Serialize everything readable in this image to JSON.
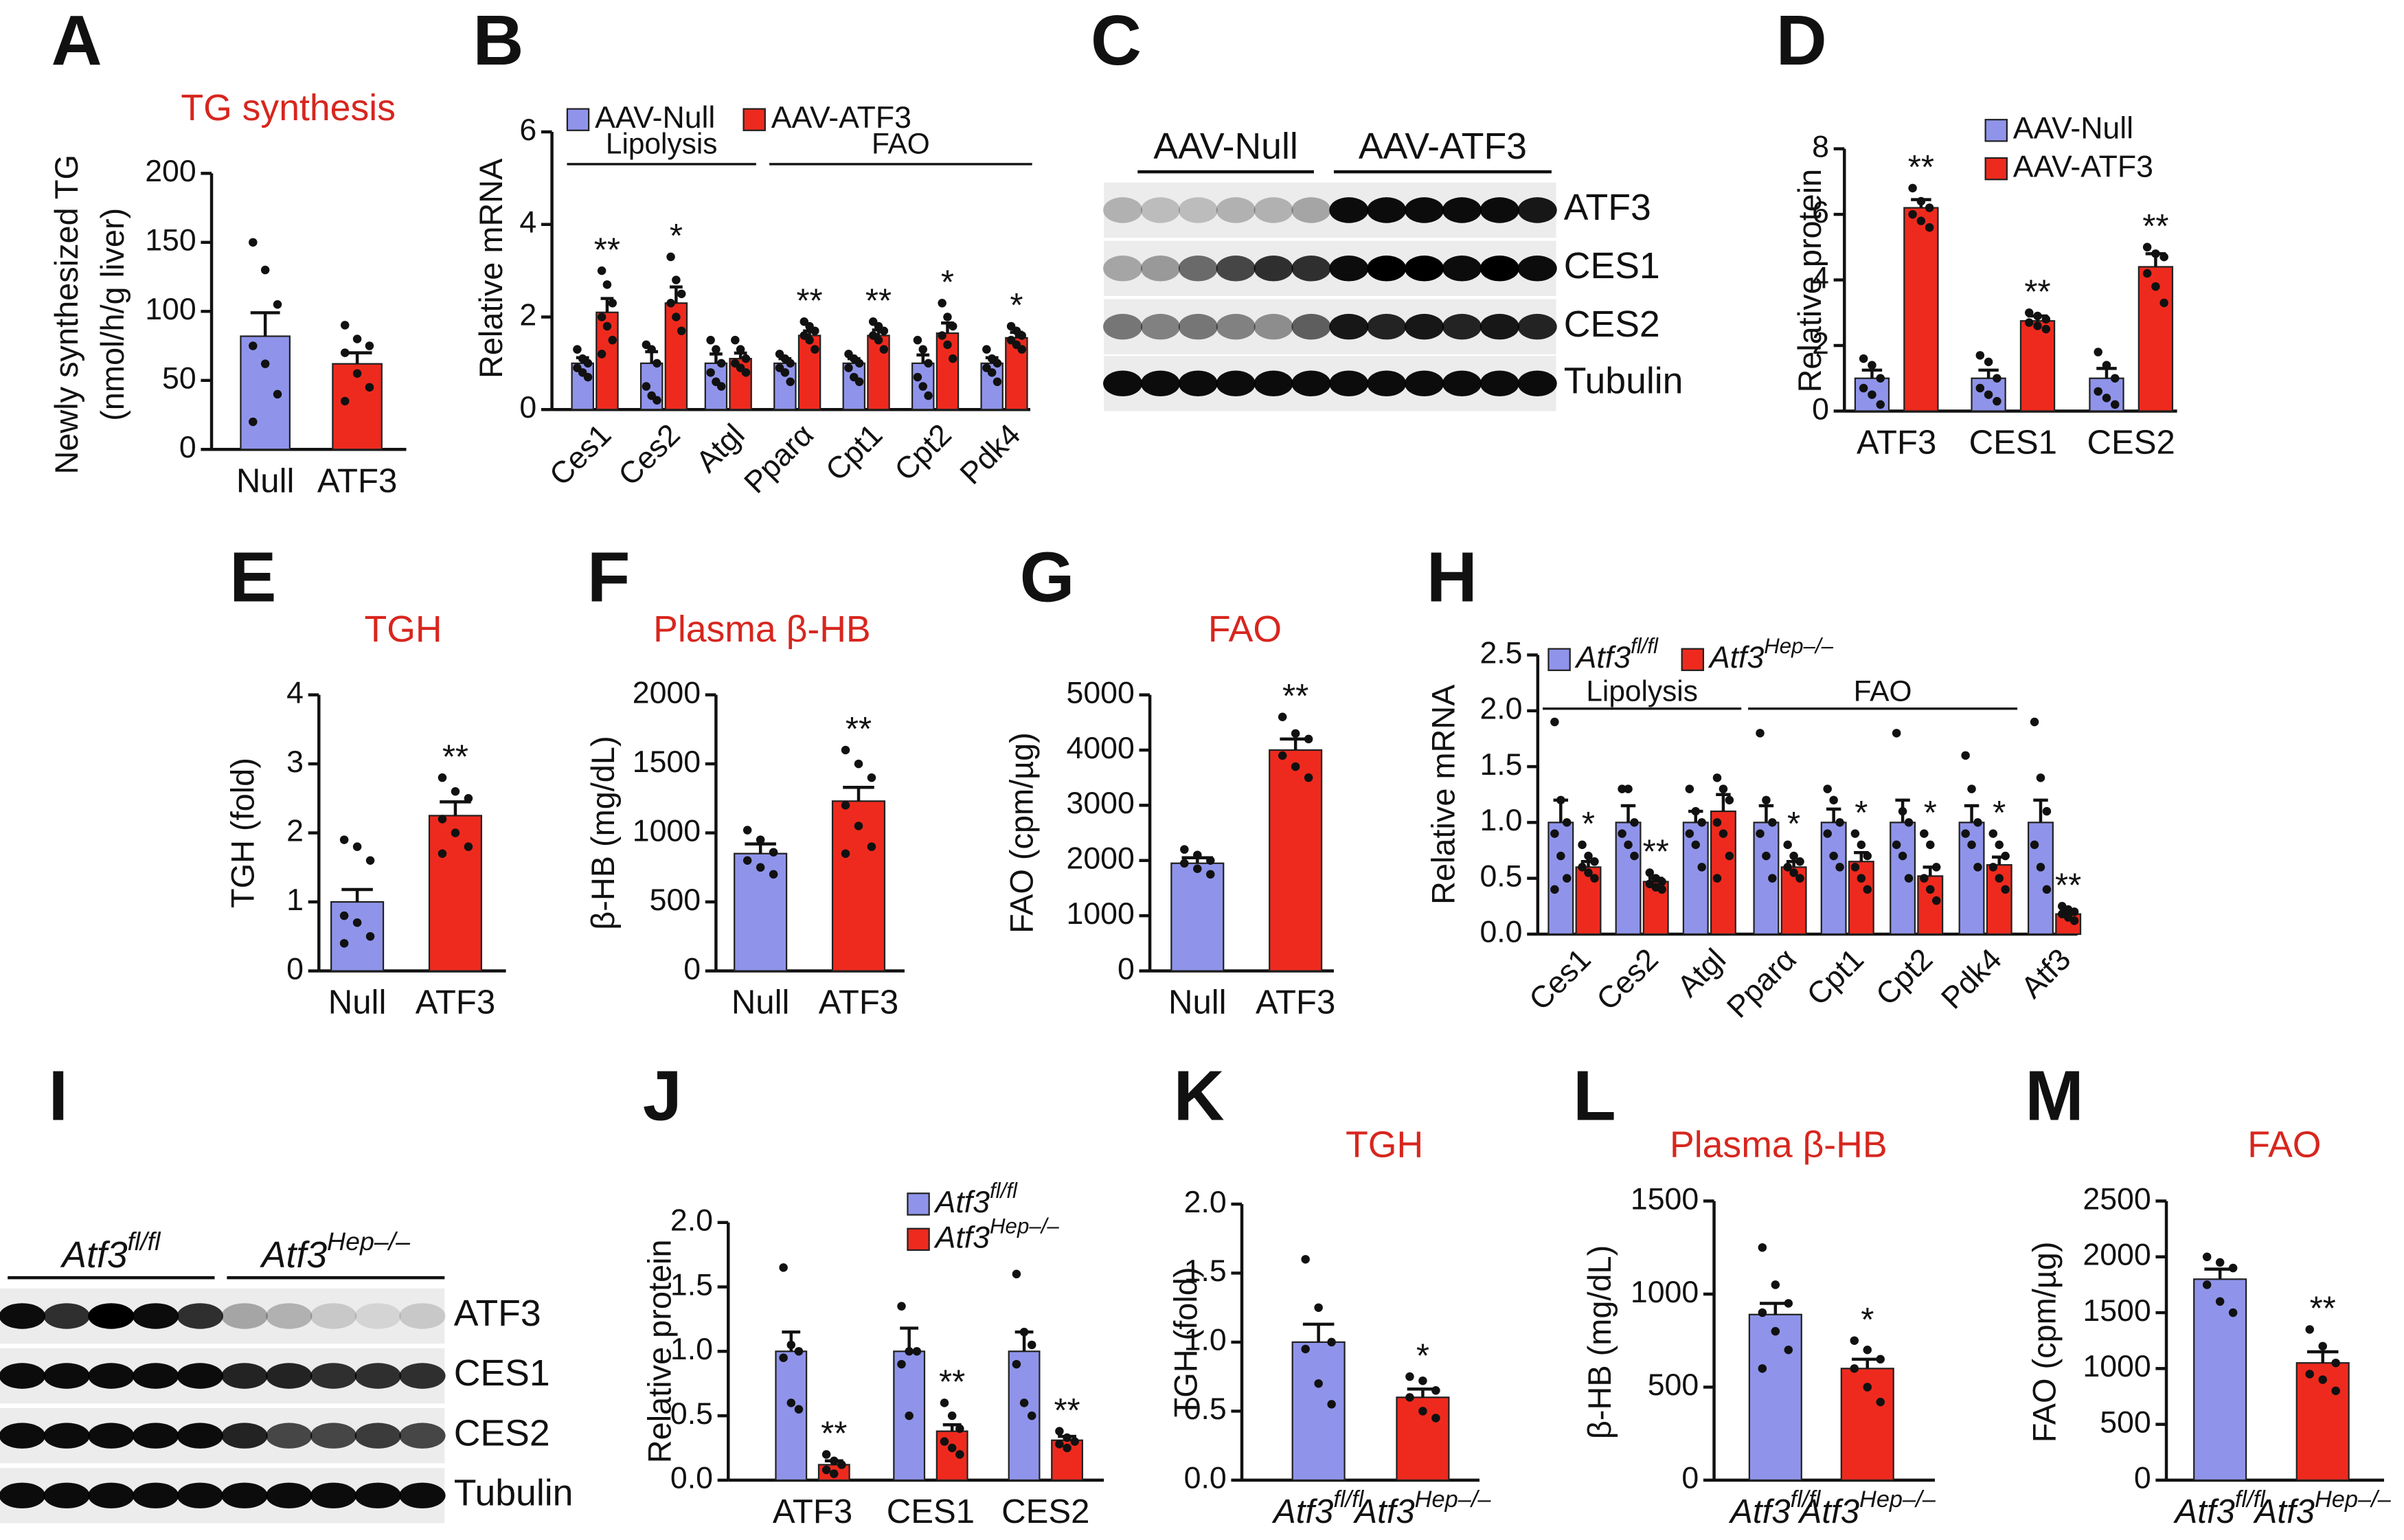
{
  "chart_data": [
    {
      "type": "bar",
      "panel": "A",
      "title": "TG synthesis",
      "ylabel": [
        "Newly synthesized TG",
        "(nmol/h/g liver)"
      ],
      "categories": [
        "Null",
        "ATF3"
      ],
      "values": [
        82,
        62
      ],
      "errors": [
        17,
        8
      ],
      "colors": [
        "#8f94ea",
        "#ee2a1e"
      ],
      "points": [
        [
          150,
          130,
          105,
          75,
          62,
          40,
          20
        ],
        [
          90,
          80,
          75,
          70,
          55,
          45,
          35
        ]
      ],
      "ylim": [
        0,
        200
      ],
      "yticks": [
        0,
        50,
        100,
        150,
        200
      ]
    },
    {
      "type": "bar",
      "panel": "B",
      "ylabel": "Relative mRNA",
      "categories": [
        "Ces1",
        "Ces2",
        "Atgl",
        "Pparα",
        "Cpt1",
        "Cpt2",
        "Pdk4"
      ],
      "ylim": [
        0,
        6
      ],
      "yticks": [
        0,
        2,
        4,
        6
      ],
      "legend": "top",
      "groups": [
        {
          "label": "Lipolysis",
          "categories": [
            "Ces1",
            "Ces2",
            "Atgl"
          ]
        },
        {
          "label": "FAO",
          "categories": [
            "Pparα",
            "Cpt1",
            "Cpt2",
            "Pdk4"
          ]
        }
      ],
      "series": [
        {
          "name": "AAV-Null",
          "color": "#8f94ea",
          "values": [
            1,
            1,
            1,
            1,
            1,
            1,
            1
          ],
          "errors": [
            0.12,
            0.25,
            0.2,
            0.1,
            0.1,
            0.18,
            0.12
          ],
          "points": [
            [
              1.3,
              1.1,
              1.0,
              0.9,
              0.8,
              0.7
            ],
            [
              1.4,
              1.3,
              1.0,
              0.5,
              0.3,
              0.2
            ],
            [
              1.5,
              1.3,
              1.0,
              0.8,
              0.6,
              0.5
            ],
            [
              1.2,
              1.1,
              1.0,
              0.9,
              0.8,
              0.6
            ],
            [
              1.2,
              1.1,
              1.0,
              0.9,
              0.7,
              0.6
            ],
            [
              1.5,
              1.3,
              1.0,
              0.7,
              0.5,
              0.3
            ],
            [
              1.3,
              1.1,
              1.0,
              0.9,
              0.8,
              0.6
            ]
          ]
        },
        {
          "name": "AAV-ATF3",
          "color": "#ee2a1e",
          "values": [
            2.1,
            2.3,
            1.1,
            1.6,
            1.6,
            1.65,
            1.55
          ],
          "errors": [
            0.3,
            0.35,
            0.12,
            0.1,
            0.12,
            0.22,
            0.12
          ],
          "annotations": [
            "**",
            "*",
            null,
            "**",
            "**",
            "*",
            "*"
          ],
          "points": [
            [
              3.0,
              2.7,
              2.3,
              2.0,
              1.8,
              1.5,
              1.2
            ],
            [
              3.3,
              2.8,
              2.5,
              2.3,
              2.0,
              1.7
            ],
            [
              1.5,
              1.3,
              1.1,
              1.0,
              0.9,
              0.8
            ],
            [
              1.9,
              1.8,
              1.7,
              1.6,
              1.5,
              1.3
            ],
            [
              1.9,
              1.8,
              1.7,
              1.6,
              1.5,
              1.3
            ],
            [
              2.3,
              2.0,
              1.8,
              1.6,
              1.4,
              1.1
            ],
            [
              1.8,
              1.7,
              1.6,
              1.5,
              1.4,
              1.3
            ]
          ]
        }
      ]
    },
    {
      "type": "blot",
      "panel": "C",
      "groups": [
        "AAV-Null",
        "AAV-ATF3"
      ],
      "bands": [
        "ATF3",
        "CES1",
        "CES2",
        "Tubulin"
      ]
    },
    {
      "type": "bar",
      "panel": "D",
      "ylabel": "Relative protein",
      "categories": [
        "ATF3",
        "CES1",
        "CES2"
      ],
      "ylim": [
        0,
        8
      ],
      "yticks": [
        0,
        2,
        4,
        6,
        8
      ],
      "legend": "upper right",
      "series": [
        {
          "name": "AAV-Null",
          "color": "#8f94ea",
          "values": [
            1,
            1,
            1
          ],
          "errors": [
            0.25,
            0.25,
            0.3
          ],
          "points": [
            [
              1.6,
              1.4,
              1.0,
              0.7,
              0.5,
              0.2
            ],
            [
              1.7,
              1.5,
              1.0,
              0.7,
              0.5,
              0.3
            ],
            [
              1.8,
              1.4,
              1.0,
              0.6,
              0.4,
              0.2
            ]
          ]
        },
        {
          "name": "AAV-ATF3",
          "color": "#ee2a1e",
          "values": [
            6.2,
            2.75,
            4.4
          ],
          "errors": [
            0.25,
            0.15,
            0.4
          ],
          "annotations": [
            "**",
            "**",
            "**"
          ],
          "points": [
            [
              6.8,
              6.4,
              6.2,
              6.0,
              5.8,
              5.6
            ],
            [
              3.0,
              2.9,
              2.8,
              2.7,
              2.6,
              2.5
            ],
            [
              5.0,
              4.8,
              4.7,
              4.2,
              3.8,
              3.3
            ]
          ]
        }
      ]
    },
    {
      "type": "bar",
      "panel": "E",
      "title": "TGH",
      "ylabel": "TGH (fold)",
      "categories": [
        "Null",
        "ATF3"
      ],
      "values": [
        1.0,
        2.25
      ],
      "errors": [
        0.18,
        0.2
      ],
      "colors": [
        "#8f94ea",
        "#ee2a1e"
      ],
      "annotations": [
        null,
        "**"
      ],
      "points": [
        [
          1.9,
          1.8,
          1.6,
          0.8,
          0.7,
          0.5,
          0.4
        ],
        [
          2.8,
          2.6,
          2.5,
          2.2,
          2.0,
          1.8,
          1.7
        ]
      ],
      "ylim": [
        0,
        4
      ],
      "yticks": [
        0,
        1,
        2,
        3,
        4
      ]
    },
    {
      "type": "bar",
      "panel": "F",
      "title": "Plasma  β-HB",
      "ylabel": "β-HB (mg/dL)",
      "categories": [
        "Null",
        "ATF3"
      ],
      "values": [
        850,
        1230
      ],
      "errors": [
        70,
        100
      ],
      "colors": [
        "#8f94ea",
        "#ee2a1e"
      ],
      "annotations": [
        null,
        "**"
      ],
      "points": [
        [
          1020,
          950,
          860,
          800,
          750,
          700
        ],
        [
          1600,
          1500,
          1400,
          1200,
          1050,
          900,
          850
        ]
      ],
      "ylim": [
        0,
        2000
      ],
      "yticks": [
        0,
        500,
        1000,
        1500,
        2000
      ]
    },
    {
      "type": "bar",
      "panel": "G",
      "title": "FAO",
      "ylabel": "FAO (cpm/µg)",
      "categories": [
        "Null",
        "ATF3"
      ],
      "values": [
        1950,
        4000
      ],
      "errors": [
        100,
        200
      ],
      "colors": [
        "#8f94ea",
        "#ee2a1e"
      ],
      "annotations": [
        null,
        "**"
      ],
      "points": [
        [
          2200,
          2100,
          2000,
          1950,
          1850,
          1750
        ],
        [
          4600,
          4300,
          4200,
          3900,
          3700,
          3500
        ]
      ],
      "ylim": [
        0,
        5000
      ],
      "yticks": [
        0,
        1000,
        2000,
        3000,
        4000,
        5000
      ]
    },
    {
      "type": "bar",
      "panel": "H",
      "ylabel": "Relative mRNA",
      "categories": [
        "Ces1",
        "Ces2",
        "Atgl",
        "Pparα",
        "Cpt1",
        "Cpt2",
        "Pdk4",
        "Atf3"
      ],
      "ylim": [
        0,
        2.5
      ],
      "yticks": [
        {
          "value": 0,
          "label": "0.0"
        },
        0.5,
        {
          "value": 1,
          "label": "1.0"
        },
        1.5,
        {
          "value": 2,
          "label": "2.0"
        },
        2.5
      ],
      "legend": "top",
      "groups": [
        {
          "label": "Lipolysis",
          "categories": [
            "Ces1",
            "Ces2",
            "Atgl"
          ]
        },
        {
          "label": "FAO",
          "categories": [
            "Pparα",
            "Cpt1",
            "Cpt2",
            "Pdk4"
          ]
        }
      ],
      "series": [
        {
          "name": {
            "text": "Atf3",
            "sup": "fl/fl"
          },
          "color": "#8f94ea",
          "values": [
            1,
            1,
            1,
            1,
            1,
            1,
            1,
            1
          ],
          "errors": [
            0.2,
            0.15,
            0.1,
            0.15,
            0.12,
            0.2,
            0.15,
            0.2
          ],
          "points": [
            [
              1.9,
              1.2,
              1.0,
              0.9,
              0.7,
              0.5,
              0.4
            ],
            [
              1.3,
              1.3,
              1.0,
              0.9,
              0.8,
              0.7
            ],
            [
              1.3,
              1.1,
              1.0,
              0.9,
              0.8,
              0.6
            ],
            [
              1.8,
              1.2,
              1.0,
              0.9,
              0.7,
              0.5
            ],
            [
              1.3,
              1.2,
              1.0,
              0.9,
              0.7,
              0.6
            ],
            [
              1.8,
              1.1,
              1.0,
              0.8,
              0.7,
              0.5
            ],
            [
              1.6,
              1.3,
              1.0,
              0.9,
              0.8,
              0.6
            ],
            [
              1.9,
              1.4,
              1.1,
              0.8,
              0.6,
              0.4
            ]
          ]
        },
        {
          "name": {
            "text": "Atf3",
            "sup": "Hep–/–"
          },
          "color": "#ee2a1e",
          "values": [
            0.6,
            0.47,
            1.1,
            0.6,
            0.65,
            0.52,
            0.62,
            0.18
          ],
          "errors": [
            0.05,
            0.03,
            0.15,
            0.05,
            0.08,
            0.08,
            0.07,
            0.02
          ],
          "annotations": [
            "*",
            "**",
            null,
            "*",
            "*",
            "*",
            "*",
            "**"
          ],
          "points": [
            [
              0.8,
              0.7,
              0.65,
              0.6,
              0.55,
              0.5
            ],
            [
              0.55,
              0.5,
              0.47,
              0.45,
              0.42,
              0.4
            ],
            [
              1.4,
              1.3,
              1.2,
              1.0,
              0.9,
              0.7,
              0.5
            ],
            [
              0.8,
              0.7,
              0.65,
              0.6,
              0.55,
              0.5
            ],
            [
              0.9,
              0.8,
              0.7,
              0.6,
              0.5,
              0.4
            ],
            [
              0.9,
              0.8,
              0.6,
              0.5,
              0.4,
              0.3
            ],
            [
              0.9,
              0.8,
              0.7,
              0.6,
              0.5,
              0.4
            ],
            [
              0.25,
              0.22,
              0.2,
              0.18,
              0.15,
              0.12
            ]
          ]
        }
      ]
    },
    {
      "type": "blot",
      "panel": "I",
      "groups": [
        {
          "text": "Atf3",
          "sup": "fl/fl"
        },
        {
          "text": "Atf3",
          "sup": "Hep–/–"
        }
      ],
      "bands": [
        "ATF3",
        "CES1",
        "CES2",
        "Tubulin"
      ]
    },
    {
      "type": "bar",
      "panel": "J",
      "ylabel": "Relative protein",
      "categories": [
        "ATF3",
        "CES1",
        "CES2"
      ],
      "ylim": [
        0,
        2
      ],
      "yticks": [
        {
          "value": 0,
          "label": "0.0"
        },
        0.5,
        {
          "value": 1,
          "label": "1.0"
        },
        1.5,
        {
          "value": 2,
          "label": "2.0"
        }
      ],
      "legend": "upper right",
      "series": [
        {
          "name": {
            "text": "Atf3",
            "sup": "fl/fl"
          },
          "color": "#8f94ea",
          "values": [
            1,
            1,
            1
          ],
          "errors": [
            0.15,
            0.18,
            0.15
          ],
          "points": [
            [
              1.65,
              1.05,
              1.0,
              0.95,
              0.6,
              0.55
            ],
            [
              1.35,
              1.0,
              1.0,
              0.9,
              0.5
            ],
            [
              1.6,
              1.15,
              1.05,
              0.9,
              0.6,
              0.5
            ]
          ]
        },
        {
          "name": {
            "text": "Atf3",
            "sup": "Hep–/–"
          },
          "color": "#ee2a1e",
          "values": [
            0.12,
            0.38,
            0.31
          ],
          "errors": [
            0.03,
            0.05,
            0.03
          ],
          "annotations": [
            "**",
            "**",
            "**"
          ],
          "points": [
            [
              0.2,
              0.15,
              0.12,
              0.08,
              0.05
            ],
            [
              0.6,
              0.5,
              0.4,
              0.3,
              0.25,
              0.2
            ],
            [
              0.38,
              0.33,
              0.3,
              0.28,
              0.25
            ]
          ]
        }
      ]
    },
    {
      "type": "bar",
      "panel": "K",
      "title": "TGH",
      "ylabel": "TGH (fold)",
      "categories": [
        {
          "text": "Atf3",
          "sup": "fl/fl"
        },
        {
          "text": "Atf3",
          "sup": "Hep–/–"
        }
      ],
      "values": [
        1.0,
        0.6
      ],
      "errors": [
        0.13,
        0.06
      ],
      "colors": [
        "#8f94ea",
        "#ee2a1e"
      ],
      "annotations": [
        null,
        "*"
      ],
      "points": [
        [
          1.6,
          1.25,
          1.0,
          0.95,
          0.7,
          0.55
        ],
        [
          0.75,
          0.72,
          0.65,
          0.6,
          0.5,
          0.45
        ]
      ],
      "ylim": [
        0,
        2
      ],
      "yticks": [
        {
          "value": 0,
          "label": "0.0"
        },
        0.5,
        {
          "value": 1,
          "label": "1.0"
        },
        1.5,
        {
          "value": 2,
          "label": "2.0"
        }
      ]
    },
    {
      "type": "bar",
      "panel": "L",
      "title": "Plasma β-HB",
      "ylabel": "β-HB (mg/dL)",
      "categories": [
        {
          "text": "Atf3",
          "sup": "fl/fl"
        },
        {
          "text": "Atf3",
          "sup": "Hep–/–"
        }
      ],
      "values": [
        890,
        600
      ],
      "errors": [
        60,
        50
      ],
      "colors": [
        "#8f94ea",
        "#ee2a1e"
      ],
      "annotations": [
        null,
        "*"
      ],
      "points": [
        [
          1250,
          1050,
          950,
          900,
          800,
          700,
          600
        ],
        [
          750,
          700,
          650,
          600,
          500,
          420
        ]
      ],
      "ylim": [
        0,
        1500
      ],
      "yticks": [
        0,
        500,
        1000,
        1500
      ]
    },
    {
      "type": "bar",
      "panel": "M",
      "title": "FAO",
      "ylabel": "FAO (cpm/µg)",
      "categories": [
        {
          "text": "Atf3",
          "sup": "fl/fl"
        },
        {
          "text": "Atf3",
          "sup": "Hep–/–"
        }
      ],
      "values": [
        1800,
        1050
      ],
      "errors": [
        90,
        100
      ],
      "colors": [
        "#8f94ea",
        "#ee2a1e"
      ],
      "annotations": [
        null,
        "**"
      ],
      "points": [
        [
          2000,
          1950,
          1900,
          1750,
          1600,
          1500
        ],
        [
          1350,
          1200,
          1050,
          950,
          900,
          800
        ]
      ],
      "ylim": [
        0,
        2500
      ],
      "yticks": [
        0,
        500,
        1000,
        1500,
        2000,
        2500
      ]
    }
  ]
}
